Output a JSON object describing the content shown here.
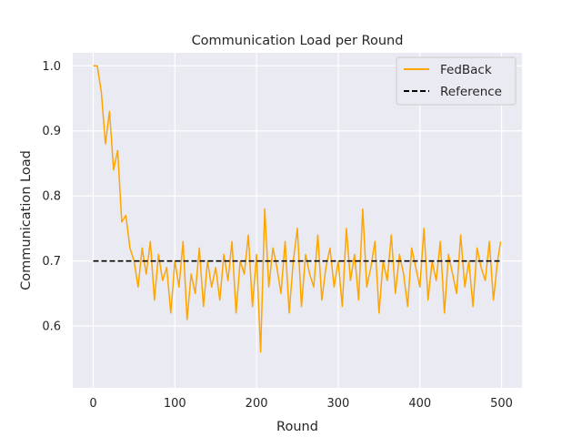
{
  "chart_data": {
    "type": "line",
    "title": "Communication Load per Round",
    "xlabel": "Round",
    "ylabel": "Communication Load",
    "xlim": [
      -25,
      525
    ],
    "ylim": [
      0.505,
      1.02
    ],
    "xticks": [
      0,
      100,
      200,
      300,
      400,
      500
    ],
    "yticks": [
      0.6,
      0.7,
      0.8,
      0.9,
      1.0
    ],
    "xtick_labels": [
      "0",
      "100",
      "200",
      "300",
      "400",
      "500"
    ],
    "ytick_labels": [
      "0.6",
      "0.7",
      "0.8",
      "0.9",
      "1.0"
    ],
    "grid": true,
    "legend_position": "top-right",
    "colors": {
      "background": "#eaeaf2",
      "grid": "#ffffff",
      "fedback": "#ffa500",
      "reference": "#000000"
    },
    "series": [
      {
        "name": "FedBack",
        "style": "solid",
        "x": [
          0,
          5,
          10,
          15,
          20,
          25,
          30,
          35,
          40,
          45,
          50,
          55,
          60,
          65,
          70,
          75,
          80,
          85,
          90,
          95,
          100,
          105,
          110,
          115,
          120,
          125,
          130,
          135,
          140,
          145,
          150,
          155,
          160,
          165,
          170,
          175,
          180,
          185,
          190,
          195,
          200,
          205,
          210,
          215,
          220,
          225,
          230,
          235,
          240,
          245,
          250,
          255,
          260,
          265,
          270,
          275,
          280,
          285,
          290,
          295,
          300,
          305,
          310,
          315,
          320,
          325,
          330,
          335,
          340,
          345,
          350,
          355,
          360,
          365,
          370,
          375,
          380,
          385,
          390,
          395,
          400,
          405,
          410,
          415,
          420,
          425,
          430,
          435,
          440,
          445,
          450,
          455,
          460,
          465,
          470,
          475,
          480,
          485,
          490,
          495,
          499
        ],
        "y": [
          1.0,
          1.0,
          0.96,
          0.88,
          0.93,
          0.84,
          0.87,
          0.76,
          0.77,
          0.72,
          0.7,
          0.66,
          0.72,
          0.68,
          0.73,
          0.64,
          0.71,
          0.67,
          0.69,
          0.62,
          0.7,
          0.66,
          0.73,
          0.61,
          0.68,
          0.65,
          0.72,
          0.63,
          0.7,
          0.66,
          0.69,
          0.64,
          0.71,
          0.67,
          0.73,
          0.62,
          0.7,
          0.68,
          0.74,
          0.63,
          0.71,
          0.56,
          0.78,
          0.66,
          0.72,
          0.69,
          0.65,
          0.73,
          0.62,
          0.7,
          0.75,
          0.63,
          0.71,
          0.68,
          0.66,
          0.74,
          0.64,
          0.69,
          0.72,
          0.66,
          0.7,
          0.63,
          0.75,
          0.67,
          0.71,
          0.64,
          0.78,
          0.66,
          0.69,
          0.73,
          0.62,
          0.7,
          0.67,
          0.74,
          0.65,
          0.71,
          0.68,
          0.63,
          0.72,
          0.69,
          0.66,
          0.75,
          0.64,
          0.7,
          0.67,
          0.73,
          0.62,
          0.71,
          0.68,
          0.65,
          0.74,
          0.66,
          0.7,
          0.63,
          0.72,
          0.69,
          0.67,
          0.73,
          0.64,
          0.7,
          0.73
        ]
      },
      {
        "name": "Reference",
        "style": "dashed",
        "x": [
          0,
          500
        ],
        "y": [
          0.7,
          0.7
        ]
      }
    ]
  }
}
